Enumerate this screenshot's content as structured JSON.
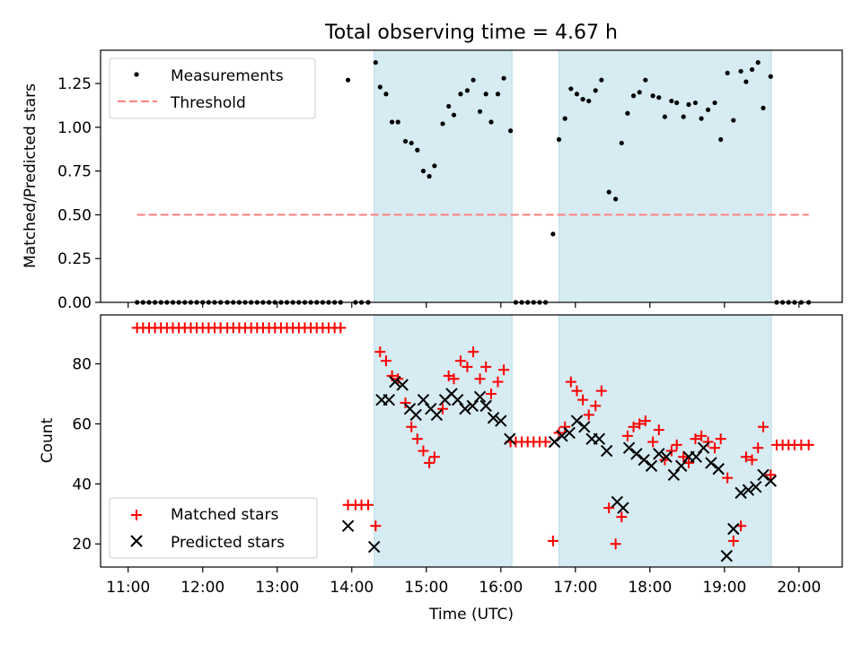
{
  "chart_data": [
    {
      "type": "scatter",
      "title": "Total observing time = 4.67 h",
      "xlabel": "",
      "ylabel": "Matched/Predicted stars",
      "xlim": [
        10.63,
        20.58
      ],
      "ylim": [
        0,
        1.44
      ],
      "yticks": [
        0,
        0.25,
        0.5,
        0.75,
        1.0,
        1.25
      ],
      "ytick_labels": [
        "0.00",
        "0.25",
        "0.50",
        "0.75",
        "1.00",
        "1.25"
      ],
      "legend": {
        "position": "top-left",
        "entries": [
          "Measurements",
          "Threshold"
        ]
      },
      "shaded_intervals": [
        [
          14.3,
          16.15
        ],
        [
          16.78,
          19.63
        ]
      ],
      "series": [
        {
          "name": "Threshold",
          "style": "dashed-line",
          "color": "#ff7f7f",
          "x": [
            11.12,
            20.13
          ],
          "y": [
            0.5,
            0.5
          ]
        },
        {
          "name": "Measurements",
          "style": "dot",
          "color": "#000000",
          "x": [
            11.12,
            11.2,
            11.28,
            11.36,
            11.44,
            11.52,
            11.6,
            11.68,
            11.76,
            11.84,
            11.92,
            12.0,
            12.08,
            12.16,
            12.24,
            12.33,
            12.41,
            12.49,
            12.57,
            12.65,
            12.73,
            12.81,
            12.89,
            12.97,
            13.05,
            13.13,
            13.21,
            13.29,
            13.37,
            13.45,
            13.53,
            13.61,
            13.69,
            13.77,
            13.85,
            13.95,
            14.05,
            14.13,
            14.22,
            14.32,
            14.38,
            14.46,
            14.54,
            14.62,
            14.72,
            14.8,
            14.88,
            14.96,
            15.04,
            15.11,
            15.22,
            15.3,
            15.37,
            15.46,
            15.55,
            15.63,
            15.72,
            15.8,
            15.87,
            15.96,
            16.04,
            16.13,
            16.2,
            16.28,
            16.36,
            16.44,
            16.52,
            16.6,
            16.7,
            16.78,
            16.86,
            16.94,
            17.02,
            17.1,
            17.18,
            17.27,
            17.35,
            17.45,
            17.54,
            17.62,
            17.7,
            17.78,
            17.86,
            17.94,
            18.04,
            18.12,
            18.2,
            18.29,
            18.36,
            18.45,
            18.52,
            18.61,
            18.69,
            18.78,
            18.87,
            18.95,
            19.04,
            19.12,
            19.22,
            19.29,
            19.37,
            19.45,
            19.52,
            19.62,
            19.7,
            19.78,
            19.86,
            19.94,
            20.03,
            20.13
          ],
          "y": [
            0,
            0,
            0,
            0,
            0,
            0,
            0,
            0,
            0,
            0,
            0,
            0,
            0,
            0,
            0,
            0,
            0,
            0,
            0,
            0,
            0,
            0,
            0,
            0,
            0,
            0,
            0,
            0,
            0,
            0,
            0,
            0,
            0,
            0,
            0,
            1.27,
            0,
            0,
            0,
            1.37,
            1.23,
            1.19,
            1.03,
            1.03,
            0.92,
            0.91,
            0.87,
            0.75,
            0.72,
            0.78,
            1.02,
            1.12,
            1.07,
            1.19,
            1.21,
            1.27,
            1.09,
            1.19,
            1.03,
            1.19,
            1.28,
            0.98,
            0,
            0,
            0,
            0,
            0,
            0,
            0.39,
            0.93,
            1.05,
            1.22,
            1.19,
            1.16,
            1.15,
            1.21,
            1.27,
            0.63,
            0.59,
            0.91,
            1.08,
            1.18,
            1.2,
            1.27,
            1.18,
            1.17,
            1.06,
            1.15,
            1.14,
            1.06,
            1.13,
            1.14,
            1.05,
            1.1,
            1.14,
            0.93,
            1.31,
            1.04,
            1.32,
            1.26,
            1.33,
            1.37,
            1.11,
            1.29,
            0,
            0,
            0,
            0,
            0,
            0
          ]
        }
      ]
    },
    {
      "type": "scatter",
      "title": "",
      "xlabel": "Time (UTC)",
      "ylabel": "Count",
      "xlim": [
        10.63,
        20.58
      ],
      "ylim": [
        12.3,
        96.3
      ],
      "yticks": [
        20,
        40,
        60,
        80
      ],
      "ytick_labels": [
        "20",
        "40",
        "60",
        "80"
      ],
      "xticks": [
        11,
        12,
        13,
        14,
        15,
        16,
        17,
        18,
        19,
        20
      ],
      "xtick_labels": [
        "11:00",
        "12:00",
        "13:00",
        "14:00",
        "15:00",
        "16:00",
        "17:00",
        "18:00",
        "19:00",
        "20:00"
      ],
      "legend": {
        "position": "bottom-left",
        "entries": [
          "Matched stars",
          "Predicted stars"
        ]
      },
      "shaded_intervals": [
        [
          14.3,
          16.15
        ],
        [
          16.78,
          19.63
        ]
      ],
      "series": [
        {
          "name": "Matched stars",
          "marker": "plus",
          "color": "#ff0000",
          "x": [
            11.12,
            11.2,
            11.28,
            11.36,
            11.44,
            11.52,
            11.6,
            11.68,
            11.76,
            11.84,
            11.92,
            12.0,
            12.08,
            12.16,
            12.24,
            12.33,
            12.41,
            12.49,
            12.57,
            12.65,
            12.73,
            12.81,
            12.89,
            12.97,
            13.05,
            13.13,
            13.21,
            13.29,
            13.37,
            13.45,
            13.53,
            13.61,
            13.69,
            13.77,
            13.85,
            13.95,
            14.05,
            14.13,
            14.22,
            14.32,
            14.38,
            14.46,
            14.54,
            14.62,
            14.72,
            14.8,
            14.88,
            14.96,
            15.04,
            15.11,
            15.22,
            15.3,
            15.37,
            15.46,
            15.55,
            15.63,
            15.72,
            15.8,
            15.87,
            15.96,
            16.04,
            16.13,
            16.2,
            16.28,
            16.36,
            16.44,
            16.52,
            16.6,
            16.7,
            16.78,
            16.86,
            16.94,
            17.02,
            17.1,
            17.18,
            17.27,
            17.35,
            17.45,
            17.54,
            17.62,
            17.7,
            17.78,
            17.86,
            17.94,
            18.04,
            18.12,
            18.2,
            18.29,
            18.36,
            18.45,
            18.52,
            18.61,
            18.69,
            18.78,
            18.87,
            18.95,
            19.04,
            19.12,
            19.22,
            19.29,
            19.37,
            19.45,
            19.52,
            19.62,
            19.7,
            19.78,
            19.86,
            19.94,
            20.03,
            20.13
          ],
          "y": [
            92,
            92,
            92,
            92,
            92,
            92,
            92,
            92,
            92,
            92,
            92,
            92,
            92,
            92,
            92,
            92,
            92,
            92,
            92,
            92,
            92,
            92,
            92,
            92,
            92,
            92,
            92,
            92,
            92,
            92,
            92,
            92,
            92,
            92,
            92,
            33,
            33,
            33,
            33,
            26,
            84,
            81,
            76,
            75,
            67,
            59,
            55,
            51,
            47,
            49,
            65,
            76,
            75,
            81,
            79,
            84,
            75,
            79,
            70,
            74,
            78,
            54,
            54,
            54,
            54,
            54,
            54,
            54,
            21,
            57,
            59,
            74,
            71,
            68,
            63,
            66,
            71,
            32,
            20,
            29,
            56,
            59,
            60,
            61,
            54,
            58,
            48,
            51,
            53,
            49,
            47,
            55,
            56,
            54,
            52,
            55,
            42,
            21,
            26,
            49,
            48,
            52,
            59,
            43,
            53,
            53,
            53,
            53,
            53,
            53
          ]
        },
        {
          "name": "Predicted stars",
          "marker": "x",
          "color": "#000000",
          "x": [
            13.95,
            14.3,
            14.4,
            14.5,
            14.58,
            14.68,
            14.78,
            14.86,
            14.96,
            15.06,
            15.14,
            15.25,
            15.34,
            15.42,
            15.52,
            15.62,
            15.72,
            15.8,
            15.9,
            16.0,
            16.12,
            16.72,
            16.82,
            16.92,
            17.02,
            17.12,
            17.22,
            17.32,
            17.42,
            17.56,
            17.64,
            17.72,
            17.82,
            17.92,
            18.02,
            18.12,
            18.22,
            18.32,
            18.42,
            18.52,
            18.62,
            18.72,
            18.82,
            18.92,
            19.03,
            19.12,
            19.22,
            19.32,
            19.42,
            19.52,
            19.62
          ],
          "y": [
            26,
            19,
            68,
            68,
            74,
            73,
            65,
            63,
            68,
            65,
            63,
            68,
            70,
            68,
            65,
            66,
            69,
            66,
            62,
            61,
            55,
            54,
            56,
            57,
            61,
            59,
            55,
            55,
            51,
            34,
            32,
            52,
            50,
            48,
            46,
            50,
            49,
            43,
            46,
            49,
            49,
            52,
            47,
            45,
            16,
            25,
            37,
            38,
            39,
            43,
            41
          ]
        }
      ]
    }
  ]
}
